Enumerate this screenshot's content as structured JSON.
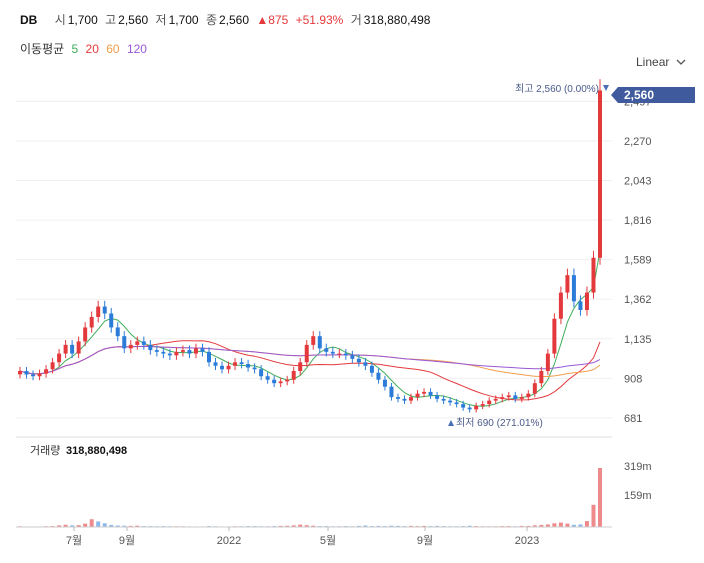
{
  "header": {
    "symbol": "DB",
    "open_label": "시",
    "open": "1,700",
    "high_label": "고",
    "high": "2,560",
    "low_label": "저",
    "low": "1,700",
    "close_label": "종",
    "close": "2,560",
    "change": "▲875",
    "change_pct": "+51.93%",
    "volume_label": "거",
    "volume": "318,880,498"
  },
  "ma_legend": {
    "title": "이동평균",
    "items": [
      {
        "period": "5",
        "color": "#3fae5a"
      },
      {
        "period": "20",
        "color": "#e4393c"
      },
      {
        "period": "60",
        "color": "#f29e4c"
      },
      {
        "period": "120",
        "color": "#9a58d6"
      }
    ]
  },
  "scale_button": {
    "label": "Linear",
    "icon": "chevron-down-icon"
  },
  "price_tag": {
    "value": "2,560",
    "bg": "#3f5b9e"
  },
  "annotations": {
    "high": {
      "text": "최고 2,560 (0.00%)",
      "icon": "triangle-down-icon"
    },
    "low": {
      "text": "최저 690 (271.01%)",
      "icon": "triangle-up-icon"
    }
  },
  "volume_panel": {
    "label": "거래량",
    "value": "318,880,498",
    "ticks": [
      "319m",
      "159m"
    ]
  },
  "chart_data": {
    "type": "candlestick",
    "title": "",
    "y_ticks": [
      681,
      908,
      1135,
      1362,
      1589,
      1816,
      2043,
      2270,
      2497
    ],
    "ylim": [
      600,
      2620
    ],
    "x_labels": [
      "7월",
      "9월",
      "2022",
      "5월",
      "9월",
      "2023"
    ],
    "colors": {
      "up": "#e4393c",
      "down": "#2b7cd8"
    },
    "series_close": [
      950,
      930,
      920,
      935,
      960,
      1000,
      1050,
      1100,
      1050,
      1120,
      1200,
      1260,
      1320,
      1280,
      1200,
      1150,
      1080,
      1100,
      1120,
      1100,
      1070,
      1060,
      1050,
      1040,
      1060,
      1070,
      1050,
      1080,
      1060,
      1000,
      980,
      960,
      980,
      1000,
      990,
      970,
      960,
      920,
      900,
      880,
      890,
      900,
      950,
      1000,
      1100,
      1150,
      1080,
      1060,
      1050,
      1050,
      1040,
      1020,
      1000,
      980,
      940,
      900,
      860,
      800,
      790,
      780,
      800,
      820,
      830,
      810,
      790,
      780,
      770,
      760,
      740,
      730,
      750,
      760,
      780,
      790,
      800,
      810,
      790,
      800,
      820,
      880,
      950,
      1050,
      1250,
      1400,
      1500,
      1350,
      1300,
      1400,
      1600,
      2560
    ],
    "volume_values_m": [
      4,
      3,
      3,
      3,
      4,
      5,
      9,
      12,
      9,
      10,
      18,
      42,
      30,
      20,
      11,
      8,
      7,
      6,
      7,
      5,
      5,
      4,
      5,
      4,
      4,
      4,
      3,
      3,
      3,
      5,
      4,
      3,
      3,
      4,
      4,
      5,
      5,
      4,
      4,
      5,
      6,
      7,
      9,
      13,
      10,
      7,
      5,
      5,
      4,
      4,
      5,
      4,
      6,
      8,
      5,
      6,
      5,
      7,
      6,
      5,
      6,
      5,
      6,
      5,
      6,
      5,
      4,
      4,
      5,
      7,
      5,
      4,
      4,
      4,
      5,
      5,
      4,
      6,
      6,
      9,
      11,
      14,
      20,
      24,
      18,
      12,
      14,
      32,
      120,
      319
    ],
    "volume_colors": [
      "#ef8a8c",
      "#8db9ea",
      "#8db9ea",
      "#ef8a8c",
      "#ef8a8c",
      "#ef8a8c",
      "#ef8a8c",
      "#ef8a8c",
      "#8db9ea",
      "#ef8a8c",
      "#ef8a8c",
      "#ef8a8c",
      "#8db9ea",
      "#8db9ea",
      "#8db9ea",
      "#8db9ea",
      "#8db9ea",
      "#ef8a8c",
      "#ef8a8c",
      "#8db9ea",
      "#8db9ea",
      "#8db9ea",
      "#8db9ea",
      "#8db9ea",
      "#ef8a8c",
      "#ef8a8c",
      "#8db9ea",
      "#ef8a8c",
      "#8db9ea",
      "#8db9ea",
      "#8db9ea",
      "#8db9ea",
      "#ef8a8c",
      "#ef8a8c",
      "#8db9ea",
      "#8db9ea",
      "#8db9ea",
      "#8db9ea",
      "#8db9ea",
      "#8db9ea",
      "#ef8a8c",
      "#ef8a8c",
      "#ef8a8c",
      "#ef8a8c",
      "#ef8a8c",
      "#ef8a8c",
      "#8db9ea",
      "#8db9ea",
      "#8db9ea",
      "#8db9ea",
      "#8db9ea",
      "#8db9ea",
      "#8db9ea",
      "#8db9ea",
      "#8db9ea",
      "#8db9ea",
      "#8db9ea",
      "#8db9ea",
      "#8db9ea",
      "#8db9ea",
      "#ef8a8c",
      "#ef8a8c",
      "#ef8a8c",
      "#8db9ea",
      "#8db9ea",
      "#8db9ea",
      "#8db9ea",
      "#8db9ea",
      "#8db9ea",
      "#8db9ea",
      "#ef8a8c",
      "#ef8a8c",
      "#ef8a8c",
      "#ef8a8c",
      "#ef8a8c",
      "#ef8a8c",
      "#8db9ea",
      "#ef8a8c",
      "#ef8a8c",
      "#ef8a8c",
      "#ef8a8c",
      "#ef8a8c",
      "#ef8a8c",
      "#ef8a8c",
      "#ef8a8c",
      "#8db9ea",
      "#8db9ea",
      "#ef8a8c",
      "#ef8a8c",
      "#ef8a8c"
    ]
  }
}
